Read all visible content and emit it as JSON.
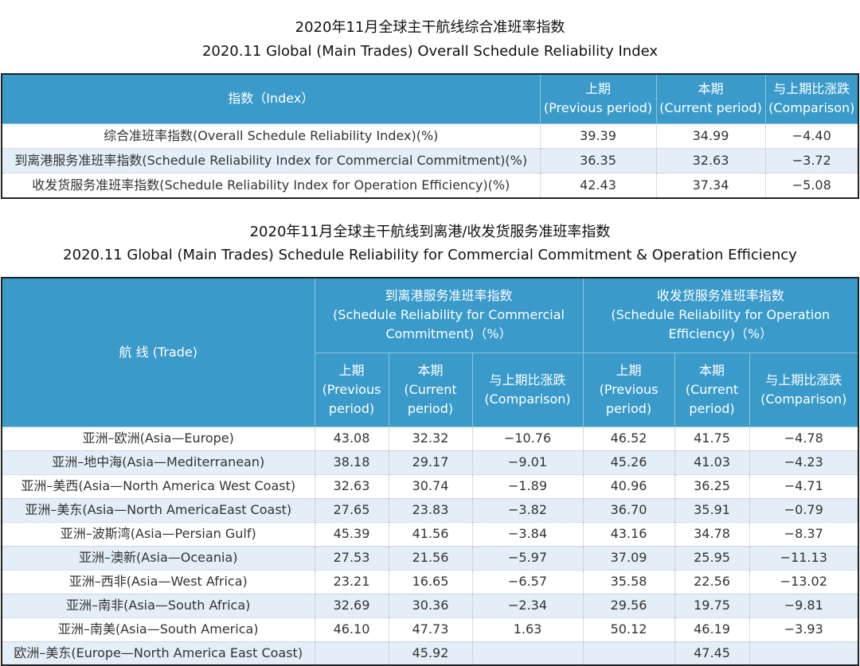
{
  "table1": {
    "title_cn": "2020年11月全球主干航线综合准班率指数",
    "title_en": "2020.11 Global (Main Trades) Overall Schedule Reliability Index",
    "headers": {
      "index": "指数（Index）",
      "prev": "上期\n(Previous period)",
      "cur": "本期\n(Current period)",
      "comp": "与上期比涨跌\n(Comparison)"
    },
    "rows": [
      [
        "综合准班率指数(Overall Schedule Reliability Index)(%)",
        "39.39",
        "34.99",
        "−4.40"
      ],
      [
        "到离港服务准班率指数(Schedule Reliability Index for Commercial Commitment)(%)",
        "36.35",
        "32.63",
        "−3.72"
      ],
      [
        "收发货服务准班率指数(Schedule Reliability Index for Operation Efficiency)(%)",
        "42.43",
        "37.34",
        "−5.08"
      ]
    ]
  },
  "table2": {
    "title_cn": "2020年11月全球主干航线到离港/收发货服务准班率指数",
    "title_en": "2020.11 Global (Main Trades) Schedule Reliability for Commercial Commitment & Operation Efficiency",
    "headers": {
      "trade": "航 线 (Trade)",
      "group1": "到离港服务准班率指数\n(Schedule Reliability for Commercial Commitment)（%）",
      "group2": "收发货服务准班率指数\n(Schedule Reliability for Operation Efficiency)（%）",
      "prev": "上期\n(Previous\nperiod)",
      "cur": "本期\n(Current\nperiod)",
      "comp": "与上期比涨跌\n(Comparison)"
    },
    "rows": [
      [
        "亚洲–欧洲(Asia—Europe)",
        "43.08",
        "32.32",
        "−10.76",
        "46.52",
        "41.75",
        "−4.78"
      ],
      [
        "亚洲–地中海(Asia—Mediterranean)",
        "38.18",
        "29.17",
        "−9.01",
        "45.26",
        "41.03",
        "−4.23"
      ],
      [
        "亚洲–美西(Asia—North America West Coast)",
        "32.63",
        "30.74",
        "−1.89",
        "40.96",
        "36.25",
        "−4.71"
      ],
      [
        "亚洲–美东(Asia—North AmericaEast Coast)",
        "27.65",
        "23.83",
        "−3.82",
        "36.70",
        "35.91",
        "−0.79"
      ],
      [
        "亚洲–波斯湾(Asia—Persian Gulf)",
        "45.39",
        "41.56",
        "−3.84",
        "43.16",
        "34.78",
        "−8.37"
      ],
      [
        "亚洲–澳新(Asia—Oceania)",
        "27.53",
        "21.56",
        "−5.97",
        "37.09",
        "25.95",
        "−11.13"
      ],
      [
        "亚洲–西非(Asia—West Africa)",
        "23.21",
        "16.65",
        "−6.57",
        "35.58",
        "22.56",
        "−13.02"
      ],
      [
        "亚洲–南非(Asia—South Africa)",
        "32.69",
        "30.36",
        "−2.34",
        "29.56",
        "19.75",
        "−9.81"
      ],
      [
        "亚洲–南美(Asia—South America)",
        "46.10",
        "47.73",
        "1.63",
        "50.12",
        "46.19",
        "−3.93"
      ],
      [
        "欧洲–美东(Europe—North America East Coast)",
        "",
        "45.92",
        "",
        "",
        "47.45",
        ""
      ]
    ]
  },
  "colors": {
    "header": "#3a9ac9",
    "alt_row": "#e3eef8"
  }
}
